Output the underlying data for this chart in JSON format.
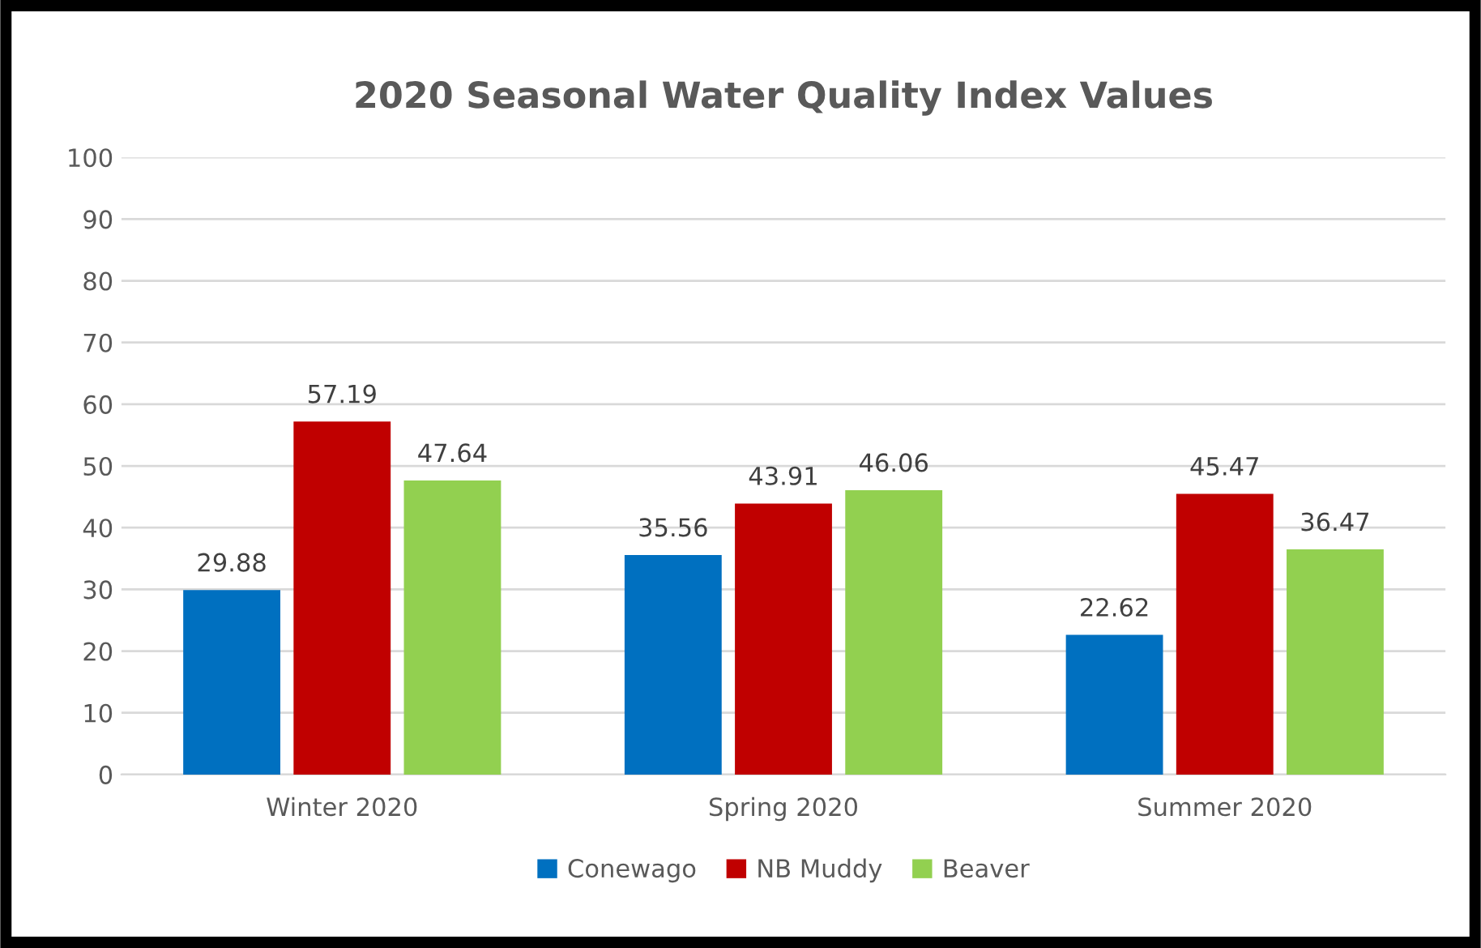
{
  "chart_data": {
    "type": "bar",
    "title": "2020 Seasonal Water Quality Index Values",
    "categories": [
      "Winter 2020",
      "Spring 2020",
      "Summer 2020"
    ],
    "series": [
      {
        "name": "Conewago",
        "color": "#0070c0",
        "values": [
          29.88,
          35.56,
          22.62
        ]
      },
      {
        "name": "NB Muddy",
        "color": "#c00000",
        "values": [
          57.19,
          43.91,
          45.47
        ]
      },
      {
        "name": "Beaver",
        "color": "#92d050",
        "values": [
          47.64,
          46.06,
          36.47
        ]
      }
    ],
    "ylim": [
      0,
      100
    ],
    "yticks": [
      0,
      10,
      20,
      30,
      40,
      50,
      60,
      70,
      80,
      90,
      100
    ],
    "grid": "y",
    "legend": "bottom",
    "data_labels": true
  }
}
